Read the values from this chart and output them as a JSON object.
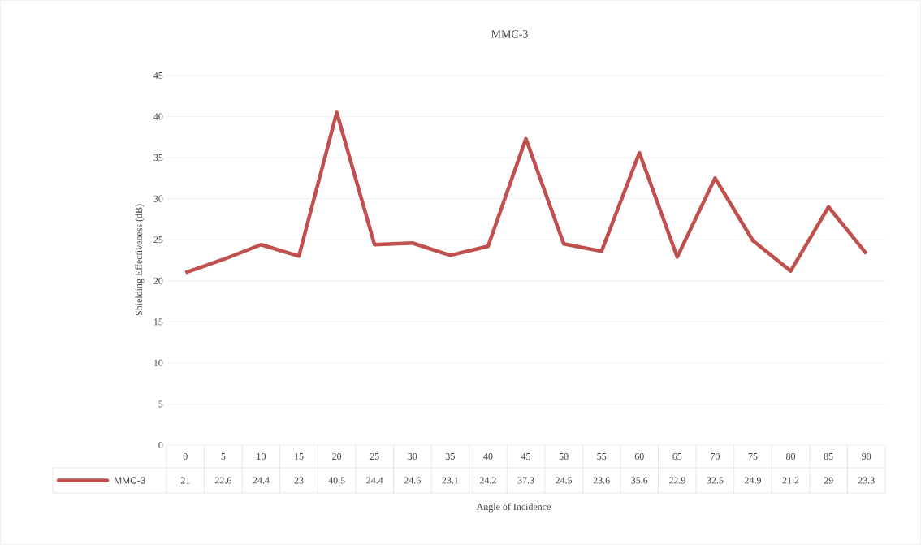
{
  "chart_data": {
    "type": "line",
    "title": "MMC-3",
    "xlabel": "Angle of Incidence",
    "ylabel": "Shielding Effectiveness (dB)",
    "categories": [
      "0",
      "5",
      "10",
      "15",
      "20",
      "25",
      "30",
      "35",
      "40",
      "45",
      "50",
      "55",
      "60",
      "65",
      "70",
      "75",
      "80",
      "85",
      "90"
    ],
    "series": [
      {
        "name": "MMC-3",
        "color": "#c0504d",
        "values": [
          21,
          22.6,
          24.4,
          23,
          40.5,
          24.4,
          24.6,
          23.1,
          24.2,
          37.3,
          24.5,
          23.6,
          35.6,
          22.9,
          32.5,
          24.9,
          21.2,
          29,
          23.3
        ]
      }
    ],
    "ylim": [
      0,
      45
    ],
    "yticks": [
      0,
      5,
      10,
      15,
      20,
      25,
      30,
      35,
      40,
      45
    ],
    "grid": "y",
    "legend": "bottom",
    "data_labels": true,
    "marker": "none",
    "line_style": "solid"
  }
}
